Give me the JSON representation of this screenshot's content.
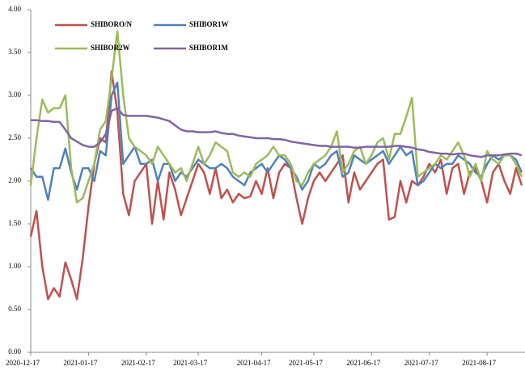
{
  "chart_data": {
    "type": "line",
    "categories": [
      "2020-12-17",
      null,
      null,
      null,
      null,
      null,
      null,
      null,
      null,
      null,
      "2021-01-17",
      null,
      null,
      null,
      null,
      null,
      null,
      null,
      null,
      null,
      "2021-02-17",
      null,
      null,
      null,
      null,
      null,
      null,
      null,
      null,
      "2021-03-17",
      null,
      null,
      null,
      null,
      null,
      null,
      null,
      null,
      null,
      null,
      "2021-04-17",
      null,
      null,
      null,
      null,
      null,
      null,
      null,
      null,
      "2021-05-17",
      null,
      null,
      null,
      null,
      null,
      null,
      null,
      null,
      null,
      "2021-06-17",
      null,
      null,
      null,
      null,
      null,
      null,
      null,
      null,
      null,
      "2021-07-17",
      null,
      null,
      null,
      null,
      null,
      null,
      null,
      null,
      null,
      "2021-08-17",
      null,
      null,
      null,
      null,
      null,
      null
    ],
    "series": [
      {
        "name": "SHIBORO/N",
        "color": "#c0504d",
        "values": [
          1.35,
          1.65,
          1.0,
          0.62,
          0.75,
          0.65,
          1.05,
          0.85,
          0.62,
          1.1,
          1.7,
          2.2,
          2.5,
          2.45,
          3.28,
          2.8,
          1.85,
          1.6,
          2.0,
          2.1,
          2.2,
          1.5,
          2.0,
          1.55,
          2.1,
          1.9,
          1.6,
          1.8,
          2.0,
          2.2,
          2.1,
          1.85,
          2.15,
          1.8,
          1.9,
          1.75,
          1.85,
          1.8,
          1.82,
          2.0,
          1.85,
          2.15,
          1.8,
          2.1,
          2.2,
          2.15,
          1.8,
          1.5,
          1.8,
          2.0,
          2.1,
          2.0,
          2.1,
          2.2,
          2.3,
          1.75,
          2.1,
          1.9,
          2.0,
          2.1,
          2.2,
          2.25,
          1.55,
          1.58,
          2.0,
          1.75,
          2.0,
          1.95,
          2.05,
          2.2,
          2.1,
          2.25,
          1.85,
          2.15,
          2.2,
          1.85,
          2.1,
          2.15,
          2.0,
          1.75,
          2.1,
          2.2,
          2.0,
          1.85,
          2.15,
          1.95
        ]
      },
      {
        "name": "SHIBOR1W",
        "color": "#4f81bd",
        "values": [
          2.15,
          2.05,
          2.05,
          1.78,
          2.15,
          2.15,
          2.38,
          2.1,
          1.9,
          2.15,
          2.15,
          2.0,
          2.35,
          2.3,
          3.0,
          3.15,
          2.2,
          2.3,
          2.4,
          2.2,
          2.2,
          2.25,
          2.0,
          2.2,
          2.2,
          2.0,
          2.1,
          2.05,
          2.15,
          2.25,
          2.2,
          2.15,
          2.15,
          2.2,
          2.15,
          2.05,
          2.0,
          1.95,
          2.1,
          2.15,
          2.2,
          2.1,
          2.2,
          2.3,
          2.25,
          2.15,
          2.05,
          1.9,
          2.0,
          2.2,
          2.15,
          2.2,
          2.3,
          2.35,
          2.05,
          2.1,
          2.3,
          2.25,
          2.2,
          2.25,
          2.3,
          2.35,
          2.2,
          2.3,
          2.4,
          2.3,
          2.35,
          1.95,
          2.0,
          2.1,
          2.2,
          2.15,
          2.2,
          2.2,
          2.3,
          2.25,
          2.2,
          2.1,
          2.05,
          2.2,
          2.3,
          2.25,
          2.3,
          2.3,
          2.25,
          2.1
        ]
      },
      {
        "name": "SHIBOR2W",
        "color": "#9bbb59",
        "values": [
          1.95,
          2.5,
          2.95,
          2.8,
          2.85,
          2.85,
          3.0,
          2.15,
          1.75,
          1.8,
          2.0,
          2.2,
          2.6,
          2.7,
          3.2,
          3.75,
          3.0,
          2.5,
          2.4,
          2.35,
          2.3,
          2.2,
          2.4,
          2.3,
          2.2,
          2.1,
          2.15,
          2.0,
          2.2,
          2.4,
          2.2,
          2.3,
          2.45,
          2.4,
          2.35,
          2.1,
          2.05,
          2.1,
          2.05,
          2.2,
          2.25,
          2.3,
          2.4,
          2.3,
          2.3,
          2.2,
          2.0,
          1.95,
          2.1,
          2.2,
          2.25,
          2.3,
          2.4,
          2.58,
          2.1,
          2.2,
          2.35,
          2.4,
          2.2,
          2.3,
          2.45,
          2.5,
          2.25,
          2.55,
          2.55,
          2.75,
          2.97,
          2.05,
          2.1,
          2.15,
          2.2,
          2.3,
          2.25,
          2.35,
          2.45,
          2.3,
          2.05,
          2.2,
          2.0,
          2.35,
          2.25,
          2.2,
          2.3,
          2.3,
          2.2,
          2.05
        ]
      },
      {
        "name": "SHIBOR1M",
        "color": "#8064a2",
        "values": [
          2.71,
          2.71,
          2.7,
          2.7,
          2.69,
          2.69,
          2.6,
          2.5,
          2.46,
          2.42,
          2.4,
          2.4,
          2.45,
          2.55,
          2.82,
          2.85,
          2.77,
          2.76,
          2.76,
          2.76,
          2.76,
          2.75,
          2.74,
          2.72,
          2.7,
          2.65,
          2.6,
          2.58,
          2.58,
          2.57,
          2.57,
          2.57,
          2.58,
          2.56,
          2.55,
          2.55,
          2.53,
          2.52,
          2.51,
          2.5,
          2.5,
          2.5,
          2.49,
          2.49,
          2.48,
          2.46,
          2.45,
          2.44,
          2.43,
          2.42,
          2.41,
          2.41,
          2.4,
          2.4,
          2.4,
          2.4,
          2.39,
          2.39,
          2.4,
          2.4,
          2.4,
          2.4,
          2.4,
          2.41,
          2.41,
          2.4,
          2.39,
          2.37,
          2.36,
          2.34,
          2.33,
          2.32,
          2.32,
          2.31,
          2.32,
          2.32,
          2.3,
          2.29,
          2.28,
          2.3,
          2.3,
          2.3,
          2.31,
          2.32,
          2.32,
          2.3
        ]
      }
    ],
    "ylim": [
      0,
      4
    ],
    "yticks": [
      {
        "value": 0,
        "label": "0.00"
      },
      {
        "value": 0.5,
        "label": "0.50"
      },
      {
        "value": 1,
        "label": "1.00"
      },
      {
        "value": 1.5,
        "label": "1.50"
      },
      {
        "value": 2,
        "label": "2.00"
      },
      {
        "value": 2.5,
        "label": "2.50"
      },
      {
        "value": 3,
        "label": "3.00"
      },
      {
        "value": 3.5,
        "label": "3.50"
      },
      {
        "value": 4,
        "label": "4.00"
      }
    ],
    "grid": false
  }
}
